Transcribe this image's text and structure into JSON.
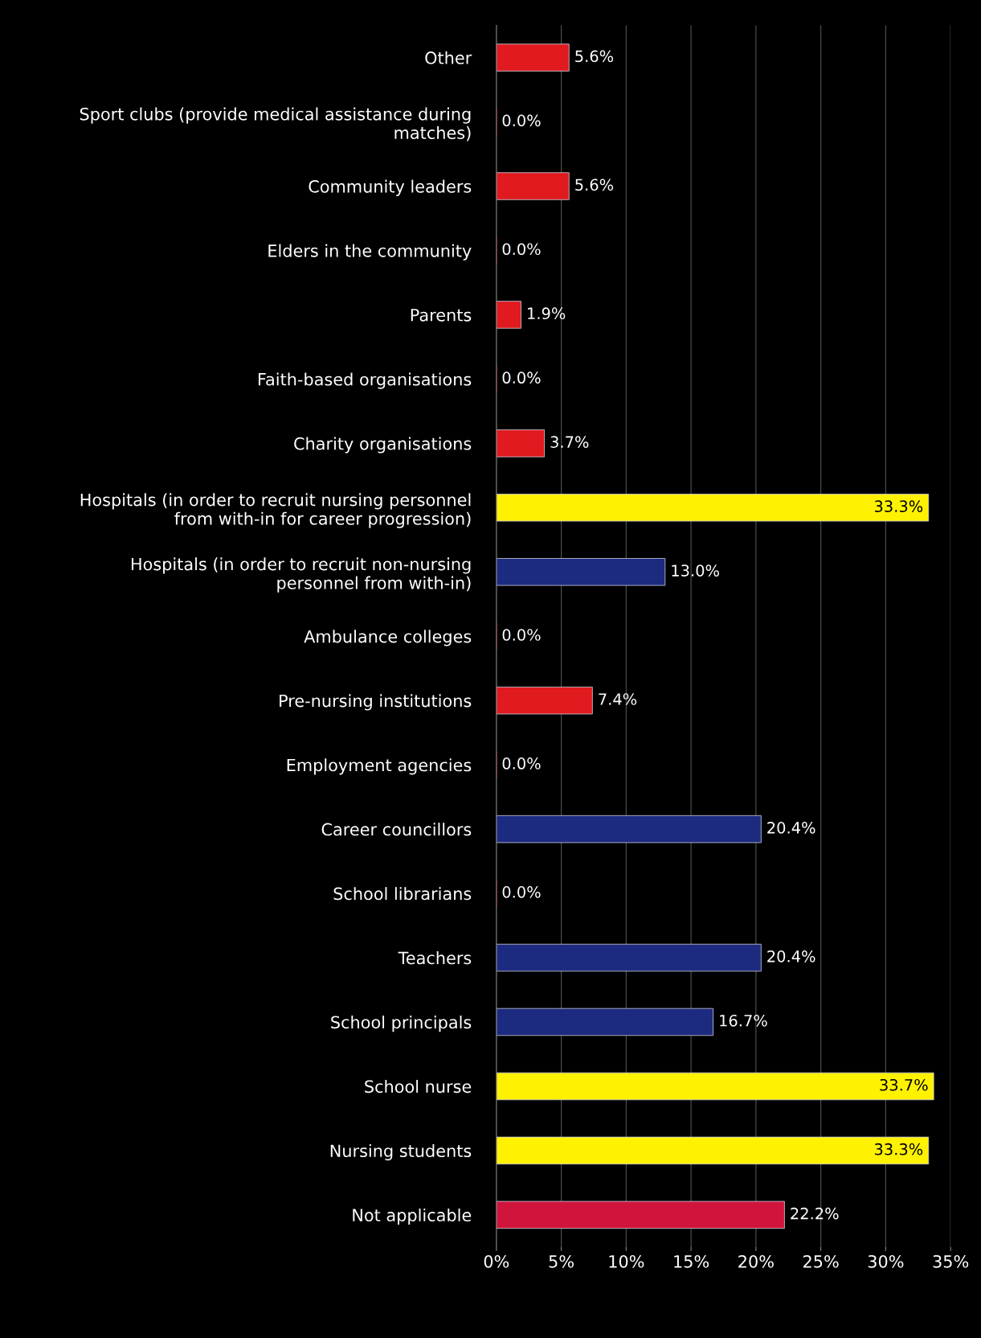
{
  "chart_data": {
    "type": "bar",
    "orientation": "horizontal",
    "categories": [
      "Other",
      "Sport clubs (provide medical assistance during\nmatches)",
      "Community leaders",
      "Elders in the community",
      "Parents",
      "Faith-based organisations",
      "Charity organisations",
      "Hospitals (in order to recruit nursing personnel\nfrom with-in for career progression)",
      "Hospitals (in order to recruit non-nursing\npersonnel from with-in)",
      "Ambulance colleges",
      "Pre-nursing institutions",
      "Employment agencies",
      "Career councillors",
      "School librarians",
      "Teachers",
      "School principals",
      "School nurse",
      "Nursing students",
      "Not applicable"
    ],
    "values": [
      5.6,
      0.0,
      5.6,
      0.0,
      1.9,
      0.0,
      3.7,
      33.3,
      13.0,
      0.0,
      7.4,
      0.0,
      20.4,
      0.0,
      20.4,
      16.7,
      33.7,
      33.3,
      22.2
    ],
    "value_labels": [
      "5.6%",
      "0.0%",
      "5.6%",
      "0.0%",
      "1.9%",
      "0.0%",
      "3.7%",
      "33.3%",
      "13.0%",
      "0.0%",
      "7.4%",
      "0.0%",
      "20.4%",
      "0.0%",
      "20.4%",
      "16.7%",
      "33.7%",
      "33.3%",
      "22.2%"
    ],
    "colors": [
      "#e01a1e",
      "#e01a1e",
      "#e01a1e",
      "#e01a1e",
      "#e01a1e",
      "#e01a1e",
      "#e01a1e",
      "#fff200",
      "#1c2a80",
      "#e01a1e",
      "#e01a1e",
      "#e01a1e",
      "#1c2a80",
      "#e01a1e",
      "#1c2a80",
      "#1c2a80",
      "#fff200",
      "#fff200",
      "#d0143c"
    ],
    "xlim": [
      0,
      35
    ],
    "xticks": [
      {
        "value": 0,
        "label": "0%"
      },
      {
        "value": 5,
        "label": "5%"
      },
      {
        "value": 10,
        "label": "10%"
      },
      {
        "value": 15,
        "label": "15%"
      },
      {
        "value": 20,
        "label": "20%"
      },
      {
        "value": 25,
        "label": "25%"
      },
      {
        "value": 30,
        "label": "30%"
      },
      {
        "value": 35,
        "label": "35%"
      }
    ],
    "grid": "x"
  }
}
